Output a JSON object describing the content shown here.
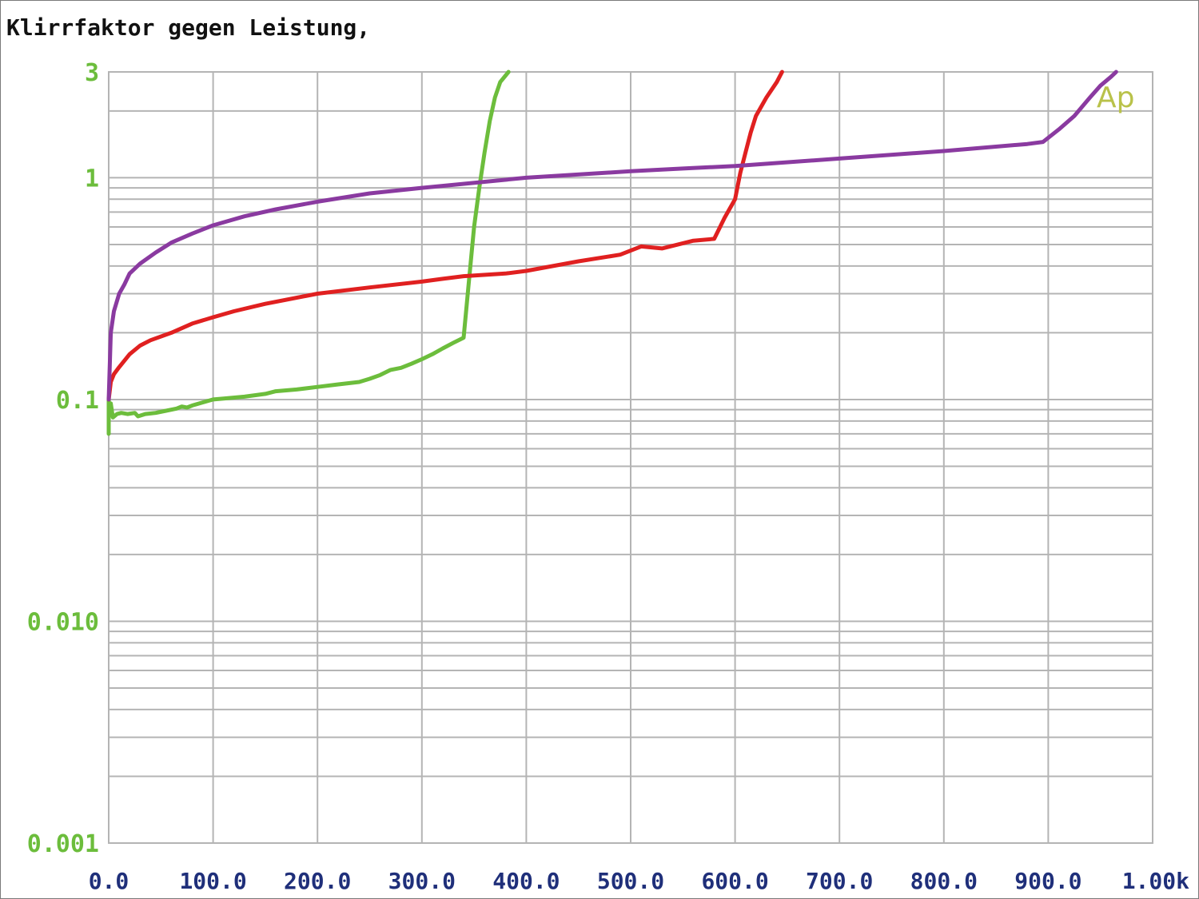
{
  "colors": {
    "background": "#ffffff",
    "grid": "#b4b4b4",
    "frame": "#7a7a7a",
    "ytick": "#6cbd3c",
    "xtick": "#1f2f7a",
    "title": "#111111",
    "watermark": "#b9c24a"
  },
  "chart_data": {
    "type": "line",
    "title": "Klirrfaktor gegen Leistung,",
    "xlabel": "",
    "ylabel": "",
    "xlim": [
      0,
      1000
    ],
    "ylim": [
      0.001,
      3
    ],
    "yscale": "log",
    "grid": true,
    "legend": "none",
    "x_tick_labels": [
      "0.0",
      "100.0",
      "200.0",
      "300.0",
      "400.0",
      "500.0",
      "600.0",
      "700.0",
      "800.0",
      "900.0",
      "1.00k"
    ],
    "x_tick_values": [
      0,
      100,
      200,
      300,
      400,
      500,
      600,
      700,
      800,
      900,
      1000
    ],
    "y_tick_labels": [
      "3",
      "1",
      "0.1",
      "0.010",
      "0.001"
    ],
    "y_tick_values": [
      3,
      1,
      0.1,
      0.01,
      0.001
    ],
    "watermark": "Ap",
    "series": [
      {
        "color": "#6cbd3c",
        "x": [
          0,
          0,
          1,
          2,
          4,
          8,
          12,
          18,
          25,
          28,
          35,
          45,
          55,
          65,
          70,
          75,
          80,
          90,
          100,
          110,
          130,
          150,
          160,
          180,
          200,
          220,
          240,
          250,
          260,
          270,
          280,
          290,
          300,
          310,
          320,
          330,
          340,
          345,
          350,
          355,
          360,
          365,
          370,
          375,
          383
        ],
        "y": [
          0.07,
          0.1,
          0.085,
          0.096,
          0.083,
          0.086,
          0.087,
          0.086,
          0.087,
          0.084,
          0.086,
          0.087,
          0.089,
          0.091,
          0.093,
          0.092,
          0.094,
          0.097,
          0.1,
          0.101,
          0.103,
          0.106,
          0.109,
          0.111,
          0.114,
          0.117,
          0.12,
          0.124,
          0.129,
          0.136,
          0.139,
          0.145,
          0.152,
          0.16,
          0.17,
          0.18,
          0.19,
          0.34,
          0.6,
          0.9,
          1.3,
          1.8,
          2.3,
          2.7,
          3.0
        ]
      },
      {
        "color": "#e02020",
        "x": [
          0,
          2,
          5,
          10,
          20,
          30,
          40,
          60,
          80,
          100,
          120,
          150,
          200,
          250,
          300,
          320,
          340,
          380,
          400,
          450,
          490,
          510,
          530,
          560,
          580,
          590,
          600,
          605,
          610,
          615,
          620,
          630,
          640,
          645
        ],
        "y": [
          0.1,
          0.12,
          0.13,
          0.14,
          0.16,
          0.175,
          0.185,
          0.2,
          0.22,
          0.235,
          0.25,
          0.27,
          0.3,
          0.32,
          0.34,
          0.35,
          0.36,
          0.37,
          0.38,
          0.42,
          0.45,
          0.49,
          0.48,
          0.52,
          0.53,
          0.66,
          0.8,
          1.05,
          1.3,
          1.6,
          1.9,
          2.3,
          2.7,
          3.0
        ]
      },
      {
        "color": "#8a3aa0",
        "x": [
          0,
          2,
          5,
          10,
          15,
          20,
          30,
          45,
          60,
          80,
          100,
          130,
          160,
          200,
          250,
          300,
          400,
          500,
          550,
          600,
          700,
          800,
          880,
          895,
          910,
          925,
          940,
          950,
          960,
          965
        ],
        "y": [
          0.1,
          0.2,
          0.25,
          0.3,
          0.33,
          0.37,
          0.41,
          0.46,
          0.51,
          0.56,
          0.61,
          0.67,
          0.72,
          0.78,
          0.85,
          0.9,
          1.0,
          1.07,
          1.1,
          1.13,
          1.22,
          1.32,
          1.42,
          1.45,
          1.65,
          1.9,
          2.3,
          2.6,
          2.85,
          3.0
        ]
      }
    ]
  }
}
